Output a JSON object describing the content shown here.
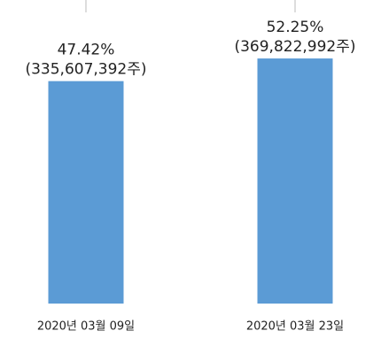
{
  "chart_data": {
    "type": "bar",
    "categories": [
      "2020년 03월 09일",
      "2020년 03월 23일"
    ],
    "values": [
      47.42,
      52.25
    ],
    "value_labels": [
      "47.42%",
      "52.25%"
    ],
    "share_labels": [
      "(335,607,392주)",
      "(369,822,992주)"
    ],
    "color": "#5b9bd5",
    "ylim": [
      0,
      60
    ]
  }
}
